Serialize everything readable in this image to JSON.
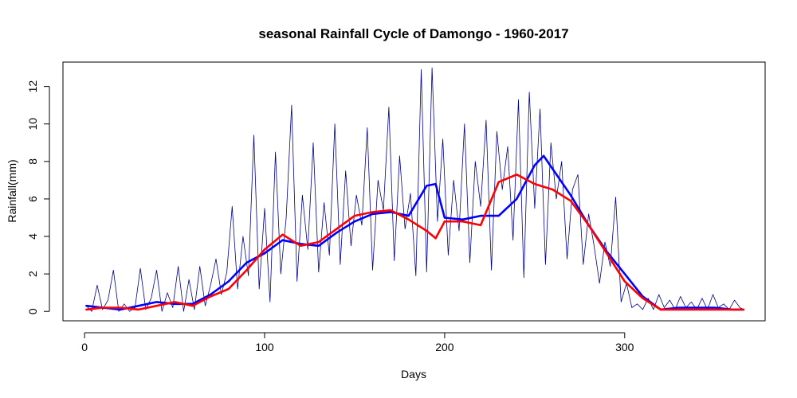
{
  "chart_data": {
    "type": "line",
    "title": "seasonal Rainfall Cycle of Damongo - 1960-2017",
    "xlabel": "Days",
    "ylabel": "Rainfall(mm)",
    "xlim": [
      -12,
      378
    ],
    "ylim": [
      -0.5,
      13.3
    ],
    "xticks": [
      0,
      100,
      200,
      300
    ],
    "yticks": [
      0,
      2,
      4,
      6,
      8,
      10,
      12
    ],
    "grid": false,
    "legend": "none",
    "series": [
      {
        "key": "daily",
        "color": "#00008B",
        "x": [
          1,
          4,
          7,
          10,
          13,
          16,
          19,
          22,
          25,
          28,
          31,
          34,
          37,
          40,
          43,
          46,
          49,
          52,
          55,
          58,
          61,
          64,
          67,
          70,
          73,
          76,
          79,
          82,
          85,
          88,
          91,
          94,
          97,
          100,
          103,
          106,
          109,
          112,
          115,
          118,
          121,
          124,
          127,
          130,
          133,
          136,
          139,
          142,
          145,
          148,
          151,
          154,
          157,
          160,
          163,
          166,
          169,
          172,
          175,
          178,
          181,
          184,
          187,
          190,
          193,
          196,
          199,
          202,
          205,
          208,
          211,
          214,
          217,
          220,
          223,
          226,
          229,
          232,
          235,
          238,
          241,
          244,
          247,
          250,
          253,
          256,
          259,
          262,
          265,
          268,
          271,
          274,
          277,
          280,
          283,
          286,
          289,
          292,
          295,
          298,
          301,
          304,
          307,
          310,
          313,
          316,
          319,
          322,
          325,
          328,
          331,
          334,
          337,
          340,
          343,
          346,
          349,
          352,
          355,
          358,
          361,
          364,
          366
        ],
        "values": [
          0.3,
          0.0,
          1.4,
          0.1,
          0.6,
          2.2,
          0.0,
          0.4,
          0.0,
          0.2,
          2.3,
          0.1,
          0.7,
          2.2,
          0.0,
          1.0,
          0.2,
          2.4,
          0.0,
          1.7,
          0.1,
          2.4,
          0.3,
          1.4,
          2.8,
          0.9,
          2.1,
          5.6,
          1.2,
          4.0,
          1.9,
          9.4,
          1.2,
          5.5,
          0.5,
          8.5,
          2.0,
          5.0,
          11.0,
          1.6,
          6.2,
          3.3,
          9.0,
          2.1,
          5.8,
          3.0,
          10.0,
          2.5,
          7.5,
          3.5,
          6.2,
          4.6,
          9.8,
          2.2,
          7.0,
          5.4,
          10.9,
          2.7,
          8.3,
          4.4,
          6.3,
          1.9,
          12.9,
          2.1,
          13.0,
          4.8,
          9.2,
          3.0,
          7.0,
          4.3,
          10.0,
          2.6,
          8.0,
          5.6,
          10.2,
          2.2,
          9.6,
          6.5,
          8.8,
          3.8,
          11.3,
          1.8,
          11.7,
          5.5,
          10.8,
          2.5,
          9.0,
          6.0,
          8.0,
          2.8,
          6.5,
          7.3,
          2.5,
          5.2,
          3.5,
          1.5,
          3.7,
          2.4,
          6.1,
          0.5,
          1.5,
          0.2,
          0.4,
          0.1,
          0.7,
          0.1,
          0.9,
          0.2,
          0.6,
          0.1,
          0.8,
          0.2,
          0.5,
          0.1,
          0.7,
          0.1,
          0.9,
          0.2,
          0.4,
          0.1,
          0.6,
          0.2,
          0.1
        ]
      },
      {
        "key": "smooth-blue",
        "color": "#0000FF",
        "x": [
          1,
          10,
          20,
          30,
          40,
          50,
          60,
          70,
          80,
          90,
          100,
          110,
          120,
          130,
          140,
          150,
          160,
          170,
          180,
          190,
          195,
          200,
          210,
          220,
          230,
          240,
          250,
          255,
          260,
          270,
          280,
          290,
          300,
          310,
          320,
          330,
          340,
          350,
          360,
          366
        ],
        "values": [
          0.3,
          0.2,
          0.1,
          0.3,
          0.5,
          0.4,
          0.4,
          0.9,
          1.6,
          2.6,
          3.1,
          3.8,
          3.6,
          3.5,
          4.2,
          4.8,
          5.2,
          5.3,
          5.1,
          6.7,
          6.8,
          5.0,
          4.9,
          5.1,
          5.1,
          6.0,
          7.8,
          8.3,
          7.6,
          6.2,
          4.6,
          3.2,
          2.0,
          0.8,
          0.1,
          0.2,
          0.2,
          0.2,
          0.1,
          0.1
        ]
      },
      {
        "key": "smooth-red",
        "color": "#FF0000",
        "x": [
          1,
          10,
          20,
          30,
          40,
          50,
          60,
          70,
          80,
          90,
          100,
          110,
          120,
          130,
          140,
          150,
          160,
          170,
          180,
          190,
          195,
          200,
          210,
          220,
          230,
          240,
          250,
          260,
          270,
          280,
          290,
          300,
          310,
          320,
          330,
          340,
          350,
          360,
          366
        ],
        "values": [
          0.1,
          0.2,
          0.2,
          0.1,
          0.3,
          0.5,
          0.3,
          0.8,
          1.2,
          2.2,
          3.3,
          4.1,
          3.5,
          3.7,
          4.4,
          5.1,
          5.3,
          5.4,
          4.9,
          4.3,
          3.9,
          4.8,
          4.8,
          4.6,
          6.9,
          7.3,
          6.8,
          6.5,
          5.9,
          4.6,
          3.1,
          1.6,
          0.7,
          0.1,
          0.1,
          0.1,
          0.1,
          0.1,
          0.1
        ]
      }
    ]
  }
}
